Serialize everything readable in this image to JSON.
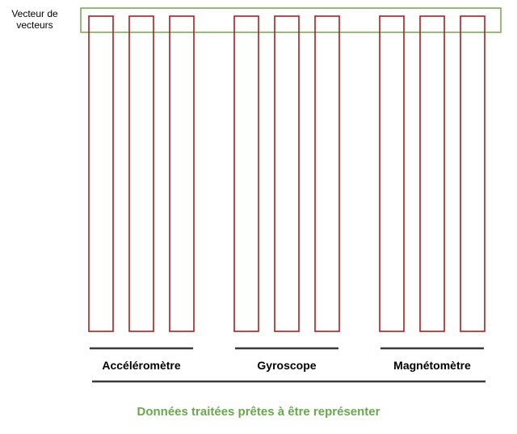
{
  "vector_label": "Vecteur de vecteurs",
  "groups": [
    {
      "name": "Accéléromètre",
      "bar_count": 3
    },
    {
      "name": "Gyroscope",
      "bar_count": 3
    },
    {
      "name": "Magnétomètre",
      "bar_count": 3
    }
  ],
  "caption": "Données traitées prêtes à être représenter",
  "colors": {
    "vector_outline": "#70a84f",
    "bar_outline": "#b01c1c",
    "underline": "#3a3a3a",
    "caption": "#6aa84f"
  }
}
